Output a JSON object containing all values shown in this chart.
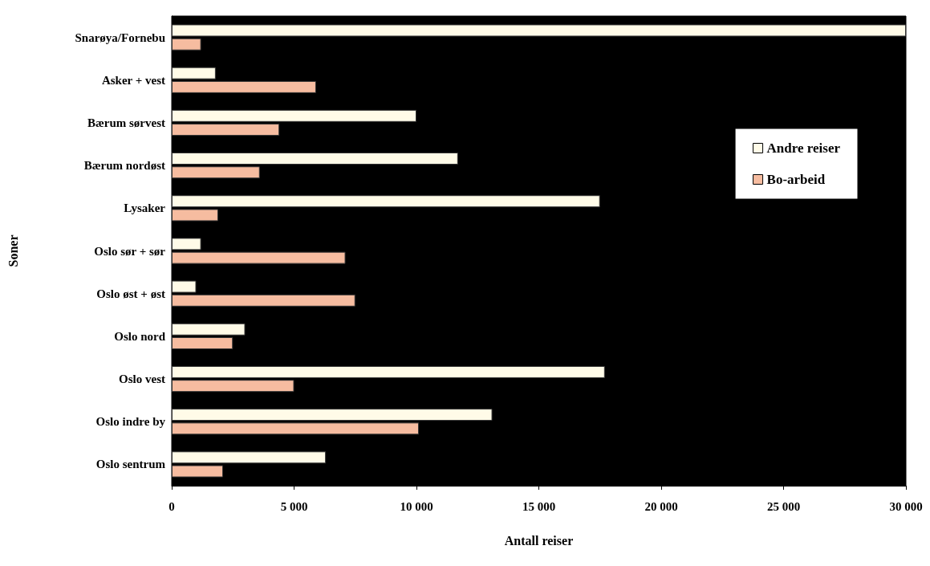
{
  "chart_data": {
    "type": "bar",
    "orientation": "horizontal",
    "xlabel": "Antall reiser",
    "ylabel": "Soner",
    "categories": [
      "Snarøya/Fornebu",
      "Asker + vest",
      "Bærum sørvest",
      "Bærum nordøst",
      "Lysaker",
      "Oslo sør + sør",
      "Oslo øst + øst",
      "Oslo nord",
      "Oslo vest",
      "Oslo indre by",
      "Oslo sentrum"
    ],
    "series": [
      {
        "name": "Andre reiser",
        "color": "#fffbe8",
        "values": [
          30000,
          1800,
          10000,
          11700,
          17500,
          1200,
          1000,
          3000,
          17700,
          13100,
          6300
        ]
      },
      {
        "name": "Bo-arbeid",
        "color": "#f6bca0",
        "values": [
          1200,
          5900,
          4400,
          3600,
          1900,
          7100,
          7500,
          2500,
          5000,
          10100,
          2100
        ]
      }
    ],
    "xlim": [
      0,
      30000
    ],
    "xticks": [
      0,
      {
        "value": 5000,
        "label": "5 000"
      },
      {
        "value": 10000,
        "label": "10 000"
      },
      {
        "value": 15000,
        "label": "15 000"
      },
      {
        "value": 20000,
        "label": "20 000"
      },
      {
        "value": 25000,
        "label": "25 000"
      },
      {
        "value": 30000,
        "label": "30 000"
      }
    ],
    "grid": false,
    "legend": "right"
  }
}
